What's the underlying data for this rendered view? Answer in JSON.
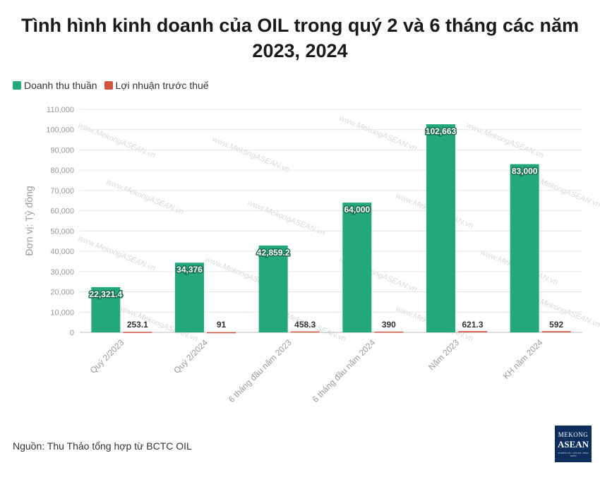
{
  "title_line1": "Tình hình kinh doanh của OIL trong quý 2 và 6 tháng các năm",
  "title_line2": "2023, 2024",
  "source": "Nguồn: Thu Thảo tổng hợp từ BCTC OIL",
  "logo": {
    "line1": "MEKONG",
    "line2": "ASEAN",
    "line3": "NGHIÊN CỨU - KẾT NỐI - PHÁT TRIỂN"
  },
  "watermark": "www.MekongASEAN.vn",
  "colors": {
    "revenue": "#23a87a",
    "profit": "#d05540",
    "grid": "#e6e6e6",
    "axis_text": "#999999"
  },
  "chart_data": {
    "type": "bar",
    "categories": [
      "Quý 2/2023",
      "Quý 2/2024",
      "6 tháng đầu năm 2023",
      "6 tháng đầu năm 2024",
      "Năm 2023",
      "KH năm 2024"
    ],
    "series": [
      {
        "name": "Doanh thu thuần",
        "values": [
          22321.4,
          34376,
          42859.2,
          64000,
          102663,
          83000
        ],
        "labels": [
          "22,321.4",
          "34,376",
          "42,859.2",
          "64,000",
          "102,663",
          "83,000"
        ]
      },
      {
        "name": "Lợi nhuận trước thuế",
        "values": [
          253.1,
          91,
          458.3,
          390,
          621.3,
          592
        ],
        "labels": [
          "253.1",
          "91",
          "458.3",
          "390",
          "621.3",
          "592"
        ]
      }
    ],
    "ylabel": "Đơn vị: Tỷ đồng",
    "ylim": [
      0,
      110000
    ],
    "yticks": [
      "0",
      "10,000",
      "20,000",
      "30,000",
      "40,000",
      "50,000",
      "60,000",
      "70,000",
      "80,000",
      "90,000",
      "100,000",
      "110,000"
    ],
    "grid": true,
    "legend": "top-left"
  }
}
